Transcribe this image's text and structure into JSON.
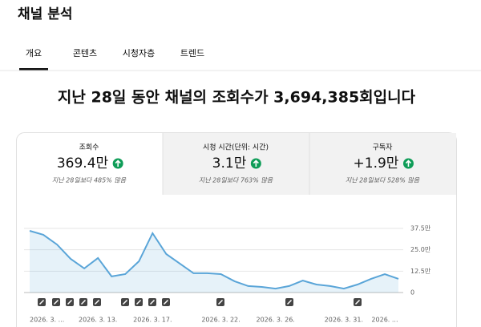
{
  "header": {
    "title": "채널 분석"
  },
  "tabs": [
    "개요",
    "콘텐츠",
    "시청자층",
    "트렌드"
  ],
  "headline": "지난 28일 동안 채널의 조회수가 3,694,385회입니다",
  "metrics": [
    {
      "label": "조회수",
      "value": "369.4만",
      "change": "지난 28일보다 485% 많음"
    },
    {
      "label": "시청 시간(단위: 시간)",
      "value": "3.1만",
      "change": "지난 28일보다 763% 많음"
    },
    {
      "label": "구독자",
      "value": "+1.9만",
      "change": "지난 28일보다 528% 많음"
    }
  ],
  "chart_data": {
    "type": "line",
    "color": "#5aa5d8",
    "categories": [
      "2026. 3. ...",
      null,
      null,
      null,
      null,
      "2026. 3. 13.",
      null,
      null,
      null,
      "2026. 3. 17.",
      null,
      null,
      null,
      null,
      "2026. 3. 22.",
      null,
      null,
      null,
      "2026. 3. 26.",
      null,
      null,
      null,
      null,
      "2026. 3. 31.",
      null,
      null,
      "2026. ...",
      null
    ],
    "values": [
      36.1,
      33.8,
      28.1,
      19.7,
      14.1,
      20.2,
      9.4,
      10.8,
      18.3,
      34.7,
      22.5,
      16.9,
      11.3,
      11.3,
      10.8,
      6.6,
      3.8,
      3.3,
      2.3,
      3.8,
      7.0,
      4.7,
      3.8,
      2.3,
      4.7,
      8.0,
      10.8,
      8.0
    ],
    "ylim": [
      0,
      37.5
    ],
    "yticks": [
      0,
      {
        "value": 12.5,
        "label": "12.5만"
      },
      {
        "value": 25,
        "label": "25.0만"
      },
      {
        "value": 37.5,
        "label": "37.5만"
      }
    ],
    "grid": true
  }
}
